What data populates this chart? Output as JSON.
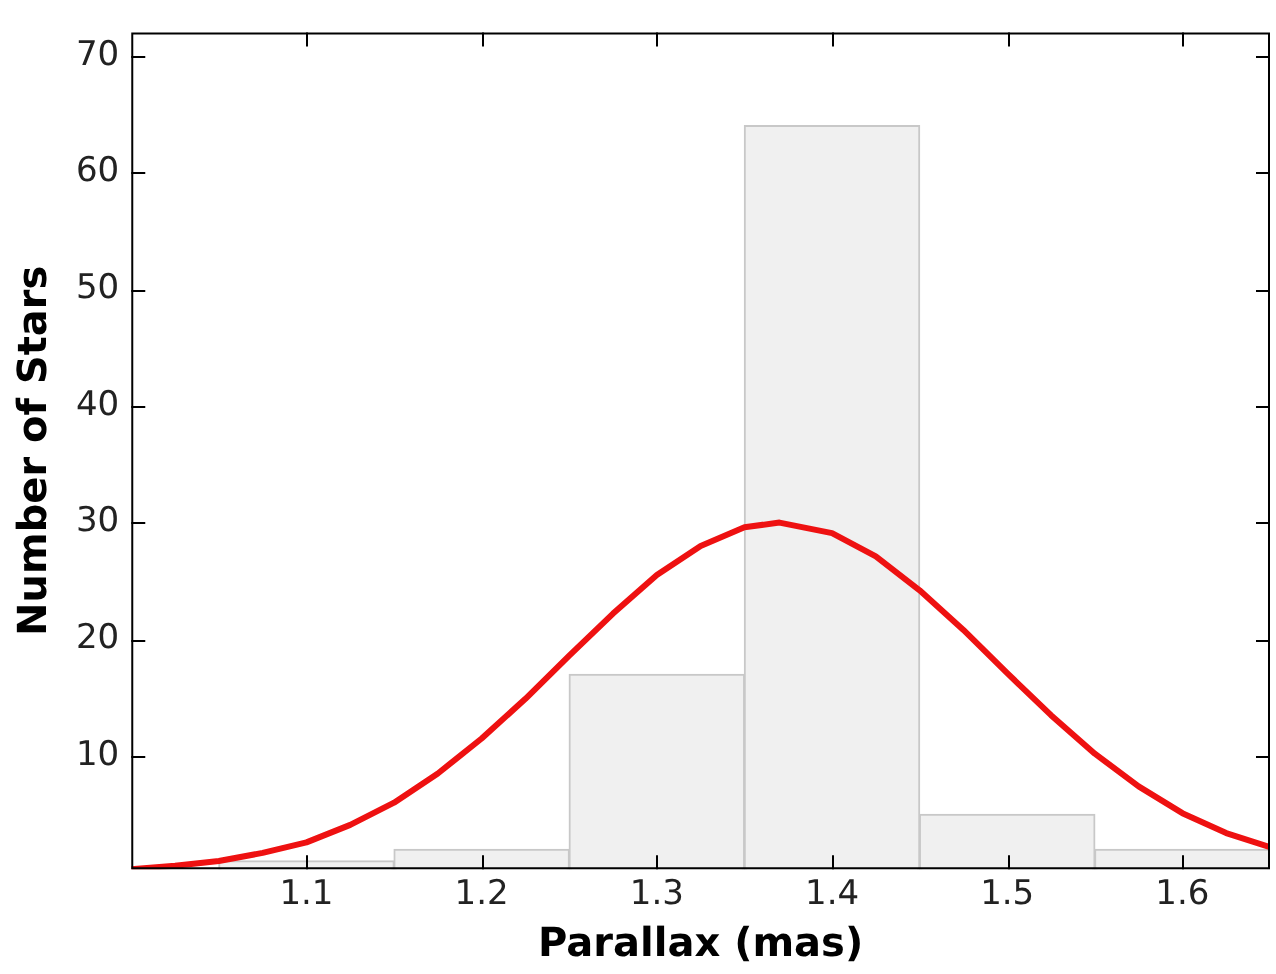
{
  "chart_data": {
    "type": "histogram",
    "xlabel": "Parallax (mas)",
    "ylabel": "Number of Stars",
    "bins": [
      1.05,
      1.15,
      1.25,
      1.35,
      1.45,
      1.55,
      1.65
    ],
    "values": [
      1,
      2,
      17,
      64,
      5,
      2
    ],
    "color": "#f0f0f0",
    "series": [
      {
        "type": "line",
        "color": "#ee1111",
        "x": [
          1.0,
          1.025,
          1.05,
          1.075,
          1.1,
          1.125,
          1.15,
          1.175,
          1.2,
          1.225,
          1.25,
          1.275,
          1.3,
          1.325,
          1.35,
          1.37,
          1.4,
          1.425,
          1.45,
          1.475,
          1.5,
          1.525,
          1.55,
          1.575,
          1.6,
          1.625,
          1.65
        ],
        "values": [
          0.3,
          0.6,
          1.0,
          1.7,
          2.6,
          4.1,
          6.0,
          8.5,
          11.5,
          14.9,
          18.6,
          22.2,
          25.5,
          28.0,
          29.6,
          30.0,
          29.1,
          27.1,
          24.2,
          20.8,
          17.1,
          13.5,
          10.2,
          7.4,
          5.1,
          3.4,
          2.2
        ]
      }
    ],
    "xlim": [
      1.0,
      1.65
    ],
    "ylim": [
      0.3,
      72
    ],
    "xticks": [
      1.1,
      1.2,
      1.3,
      1.4,
      1.5,
      1.6
    ],
    "yticks": [
      10,
      20,
      30,
      40,
      50,
      60,
      70
    ],
    "grid": false,
    "legend": false,
    "marker": "none",
    "line_style": "solid"
  }
}
